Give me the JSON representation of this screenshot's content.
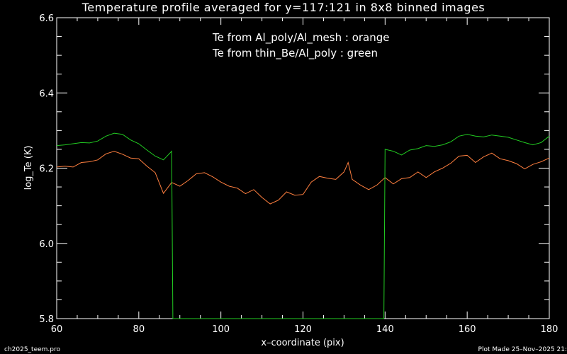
{
  "chart_data": {
    "type": "line",
    "title": "Temperature profile averaged for y=117:121 in 8x8 binned images",
    "xlabel": "x–coordinate (pix)",
    "ylabel": "log_Te (K)",
    "xlim": [
      60,
      180
    ],
    "ylim": [
      5.8,
      6.6
    ],
    "xticks": [
      60,
      80,
      100,
      120,
      140,
      160,
      180
    ],
    "yticks": [
      5.8,
      6.0,
      6.2,
      6.4,
      6.6
    ],
    "xtick_labels": [
      "60",
      "80",
      "100",
      "120",
      "140",
      "160",
      "180"
    ],
    "ytick_labels": [
      "5.8",
      "6.0",
      "6.2",
      "6.4",
      "6.6"
    ],
    "annotations": [
      "Te from Al_poly/Al_mesh : orange",
      "Te from thin_Be/Al_poly : green"
    ],
    "grid": false,
    "series": [
      {
        "color": "#ff7f3f",
        "x": [
          60,
          62,
          64,
          66,
          68,
          70,
          72,
          74,
          76,
          78,
          80,
          82,
          84,
          86,
          88,
          90,
          92,
          94,
          96,
          98,
          100,
          102,
          104,
          106,
          108,
          110,
          112,
          114,
          116,
          118,
          120,
          122,
          124,
          126,
          128,
          130,
          131,
          132,
          134,
          136,
          138,
          140,
          142,
          144,
          146,
          148,
          150,
          152,
          154,
          156,
          158,
          160,
          162,
          164,
          166,
          168,
          170,
          172,
          174,
          176,
          178,
          180
        ],
        "y": [
          6.203,
          6.205,
          6.203,
          6.215,
          6.217,
          6.222,
          6.238,
          6.245,
          6.237,
          6.227,
          6.225,
          6.205,
          6.188,
          6.133,
          6.162,
          6.152,
          6.167,
          6.185,
          6.188,
          6.177,
          6.163,
          6.152,
          6.147,
          6.132,
          6.143,
          6.122,
          6.105,
          6.115,
          6.137,
          6.128,
          6.13,
          6.163,
          6.178,
          6.173,
          6.17,
          6.19,
          6.215,
          6.17,
          6.155,
          6.143,
          6.155,
          6.175,
          6.158,
          6.172,
          6.175,
          6.19,
          6.175,
          6.19,
          6.2,
          6.213,
          6.232,
          6.234,
          6.215,
          6.23,
          6.24,
          6.225,
          6.22,
          6.212,
          6.198,
          6.21,
          6.217,
          6.227
        ]
      },
      {
        "color": "#22cc22",
        "x": [
          60,
          62,
          64,
          66,
          68,
          70,
          72,
          74,
          76,
          78,
          80,
          82,
          84,
          86,
          88,
          88.3,
          139.7,
          140,
          142,
          144,
          146,
          148,
          150,
          152,
          154,
          156,
          158,
          160,
          162,
          164,
          166,
          168,
          170,
          172,
          174,
          176,
          178,
          180
        ],
        "y": [
          6.26,
          6.262,
          6.265,
          6.268,
          6.267,
          6.272,
          6.285,
          6.293,
          6.29,
          6.275,
          6.265,
          6.248,
          6.232,
          6.222,
          6.245,
          5.8,
          5.8,
          6.25,
          6.245,
          6.235,
          6.248,
          6.252,
          6.26,
          6.258,
          6.262,
          6.27,
          6.285,
          6.29,
          6.285,
          6.283,
          6.288,
          6.285,
          6.282,
          6.275,
          6.268,
          6.262,
          6.268,
          6.285
        ]
      }
    ]
  },
  "footer": {
    "left": "ch2025_teem.pro",
    "right": "Plot Made 25–Nov–2025 21:"
  }
}
